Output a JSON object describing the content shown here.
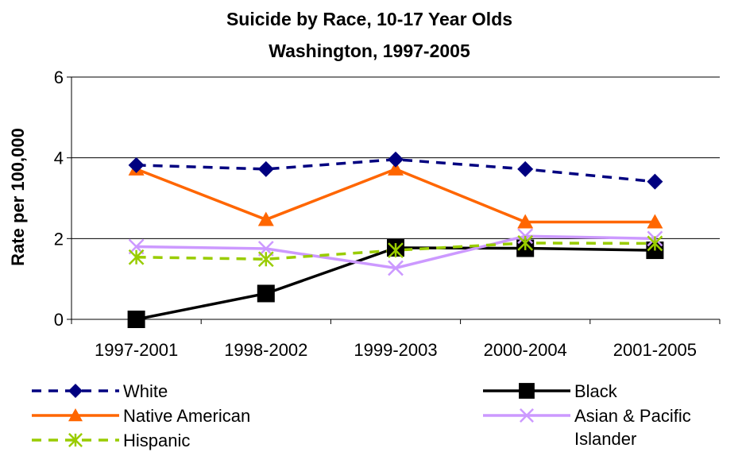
{
  "chart_data": {
    "type": "line",
    "title": "Suicide by Race, 10-17 Year Olds",
    "subtitle": "Washington, 1997-2005",
    "xlabel": "",
    "ylabel": "Rate per 100,000",
    "categories": [
      "1997-2001",
      "1998-2002",
      "1999-2003",
      "2000-2004",
      "2001-2005"
    ],
    "ylim": [
      0,
      6
    ],
    "yticks": [
      0,
      2,
      4,
      6
    ],
    "grid": true,
    "legend_position": "bottom",
    "series": [
      {
        "name": "White",
        "values": [
          3.82,
          3.72,
          3.96,
          3.72,
          3.41
        ],
        "color": "#000080",
        "dash": true,
        "marker": "diamond"
      },
      {
        "name": "Black",
        "values": [
          0.0,
          0.64,
          1.77,
          1.76,
          1.71
        ],
        "color": "#000000",
        "dash": false,
        "marker": "square"
      },
      {
        "name": "Native American",
        "values": [
          3.72,
          2.47,
          3.72,
          2.41,
          2.41
        ],
        "color": "#ff6600",
        "dash": false,
        "marker": "triangle"
      },
      {
        "name": "Asian & Pacific Islander",
        "values": [
          1.8,
          1.75,
          1.27,
          2.06,
          2.0
        ],
        "color": "#cc99ff",
        "dash": false,
        "marker": "x"
      },
      {
        "name": "Hispanic",
        "values": [
          1.54,
          1.49,
          1.71,
          1.89,
          1.88
        ],
        "color": "#99cc00",
        "dash": true,
        "marker": "asterisk"
      }
    ]
  }
}
